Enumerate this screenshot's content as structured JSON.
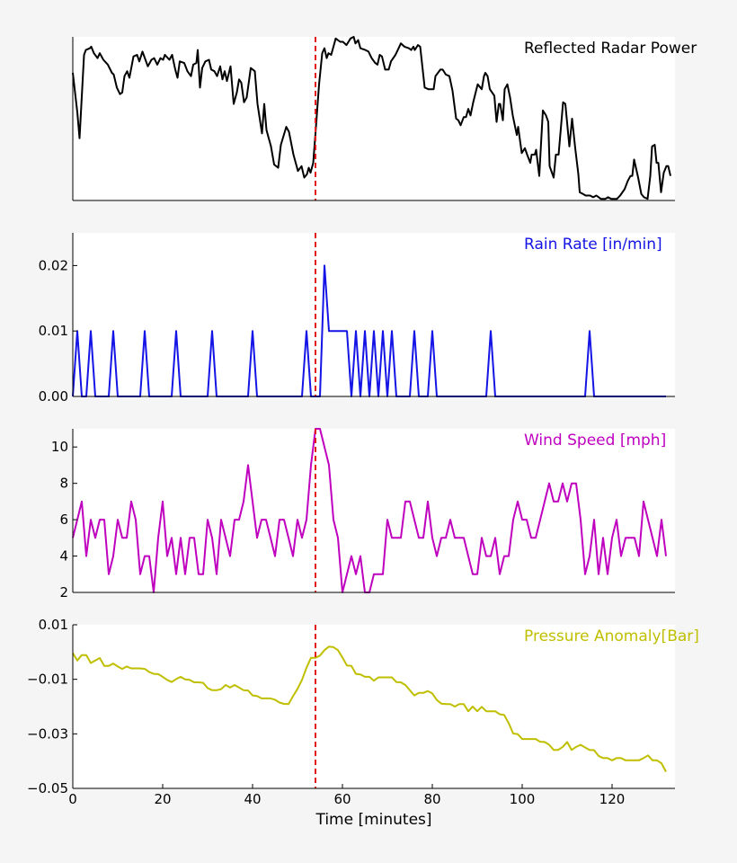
{
  "chart_data": [
    {
      "type": "line",
      "title": "Reflected Radar Power",
      "color": "#000000",
      "xlim": [
        0,
        134
      ],
      "ylim": [
        0,
        1
      ],
      "yticks": [],
      "x": [
        0,
        1,
        1.5,
        2.5,
        2.9,
        3.8,
        4.1,
        4.7,
        5.5,
        6.0,
        6.8,
        7.8,
        8.7,
        9.1,
        9.8,
        10.5,
        11.0,
        11.5,
        12.1,
        12.6,
        13.5,
        14.3,
        14.8,
        15.5,
        16.7,
        17.5,
        18.1,
        18.8,
        19.5,
        20.1,
        20.5,
        21.5,
        22.1,
        22.8,
        23.3,
        23.8,
        24.8,
        25.5,
        26.3,
        26.8,
        27.5,
        27.8,
        28.3,
        28.8,
        29.5,
        30.3,
        30.8,
        31.5,
        32.1,
        32.8,
        33.3,
        33.8,
        34.3,
        35.1,
        35.8,
        36.5,
        37.0,
        37.5,
        38.1,
        38.7,
        39.6,
        40.5,
        41.1,
        42.1,
        42.6,
        43.1,
        44.1,
        44.8,
        45.7,
        46.3,
        47.5,
        48.1,
        49.1,
        50.1,
        50.9,
        51.5,
        52.1,
        52.5,
        52.9,
        53.5,
        54.0,
        54.8,
        55.5,
        56.0,
        56.5,
        56.9,
        57.5,
        58.1,
        58.5,
        59.5,
        60.1,
        60.9,
        61.8,
        62.5,
        62.9,
        63.5,
        64.0,
        65.1,
        65.8,
        66.5,
        67.3,
        67.8,
        68.3,
        68.8,
        69.5,
        70.3,
        70.8,
        71.8,
        72.5,
        73.0,
        73.8,
        74.8,
        75.3,
        75.8,
        76.1,
        76.8,
        77.3,
        78.3,
        79.1,
        79.8,
        80.3,
        80.7,
        81.8,
        82.3,
        83.0,
        83.8,
        84.5,
        85.3,
        85.8,
        86.3,
        87.0,
        87.5,
        88.0,
        88.5,
        89.1,
        90.1,
        91.0,
        91.5,
        91.8,
        92.3,
        92.8,
        93.8,
        94.3,
        94.8,
        95.1,
        95.7,
        96.1,
        96.7,
        97.3,
        97.9,
        98.8,
        99.1,
        99.9,
        100.6,
        101.1,
        101.8,
        102.1,
        102.8,
        103.1,
        103.8,
        104.6,
        105.3,
        105.8,
        106.1,
        107.0,
        107.5,
        108.1,
        109.1,
        109.6,
        110.5,
        111.1,
        111.8,
        112.5,
        112.8,
        113.5,
        114.1,
        115.1,
        115.8,
        116.5,
        117.5,
        118.5,
        119.1,
        119.8,
        121.1,
        121.8,
        122.8,
        123.5,
        124.1,
        124.5,
        124.9,
        125.8,
        126.5,
        127.1,
        127.9,
        128.5,
        128.9,
        129.5,
        129.9,
        130.3,
        130.9,
        131.5,
        132.1,
        132.5,
        133.0
      ],
      "y": [
        0.78,
        0.54,
        0.38,
        0.89,
        0.92,
        0.93,
        0.94,
        0.9,
        0.87,
        0.9,
        0.86,
        0.83,
        0.78,
        0.77,
        0.69,
        0.65,
        0.66,
        0.76,
        0.79,
        0.75,
        0.88,
        0.89,
        0.85,
        0.91,
        0.82,
        0.86,
        0.87,
        0.83,
        0.87,
        0.86,
        0.89,
        0.86,
        0.89,
        0.8,
        0.75,
        0.85,
        0.84,
        0.79,
        0.76,
        0.83,
        0.84,
        0.92,
        0.69,
        0.81,
        0.85,
        0.86,
        0.8,
        0.79,
        0.76,
        0.82,
        0.74,
        0.79,
        0.73,
        0.82,
        0.59,
        0.66,
        0.74,
        0.72,
        0.6,
        0.63,
        0.81,
        0.79,
        0.59,
        0.41,
        0.59,
        0.43,
        0.33,
        0.22,
        0.2,
        0.34,
        0.45,
        0.42,
        0.28,
        0.18,
        0.21,
        0.14,
        0.16,
        0.2,
        0.17,
        0.23,
        0.41,
        0.71,
        0.9,
        0.93,
        0.87,
        0.9,
        0.89,
        0.95,
        0.99,
        0.97,
        0.97,
        0.95,
        0.99,
        1.0,
        0.96,
        0.98,
        0.93,
        0.92,
        0.91,
        0.87,
        0.84,
        0.83,
        0.89,
        0.88,
        0.8,
        0.8,
        0.85,
        0.89,
        0.93,
        0.96,
        0.94,
        0.93,
        0.92,
        0.94,
        0.92,
        0.95,
        0.94,
        0.69,
        0.68,
        0.68,
        0.68,
        0.76,
        0.8,
        0.8,
        0.77,
        0.76,
        0.67,
        0.5,
        0.49,
        0.46,
        0.51,
        0.51,
        0.56,
        0.52,
        0.6,
        0.71,
        0.68,
        0.76,
        0.78,
        0.76,
        0.68,
        0.64,
        0.48,
        0.59,
        0.59,
        0.49,
        0.68,
        0.71,
        0.63,
        0.52,
        0.4,
        0.45,
        0.29,
        0.32,
        0.28,
        0.23,
        0.28,
        0.28,
        0.31,
        0.15,
        0.55,
        0.52,
        0.48,
        0.21,
        0.14,
        0.28,
        0.28,
        0.6,
        0.59,
        0.33,
        0.5,
        0.32,
        0.16,
        0.05,
        0.04,
        0.03,
        0.03,
        0.02,
        0.03,
        0.01,
        0.01,
        0.02,
        0.01,
        0.01,
        0.03,
        0.07,
        0.12,
        0.15,
        0.15,
        0.25,
        0.14,
        0.04,
        0.02,
        0.01,
        0.15,
        0.33,
        0.34,
        0.23,
        0.23,
        0.05,
        0.17,
        0.21,
        0.21,
        0.15
      ]
    },
    {
      "type": "line",
      "title": "Rain Rate [in/min]",
      "color": "#1414e6",
      "xlim": [
        0,
        134
      ],
      "ylim": [
        0,
        0.025
      ],
      "yticks": [
        "0.00",
        "0.01",
        "0.02"
      ],
      "ytick_values": [
        0,
        0.01,
        0.02
      ],
      "y": [
        0,
        0.01,
        0,
        0,
        0.01,
        0,
        0,
        0,
        0,
        0.01,
        0,
        0,
        0,
        0,
        0,
        0,
        0.01,
        0,
        0,
        0,
        0,
        0,
        0,
        0.01,
        0,
        0,
        0,
        0,
        0,
        0,
        0,
        0.01,
        0,
        0,
        0,
        0,
        0,
        0,
        0,
        0,
        0.01,
        0,
        0,
        0,
        0,
        0,
        0,
        0,
        0,
        0,
        0,
        0,
        0.01,
        0,
        0,
        0,
        0.02,
        0.01,
        0.01,
        0.01,
        0.01,
        0.01,
        0,
        0.01,
        0,
        0.01,
        0,
        0.01,
        0,
        0.01,
        0,
        0.01,
        0,
        0,
        0,
        0,
        0.01,
        0,
        0,
        0,
        0.01,
        0,
        0,
        0,
        0,
        0,
        0,
        0,
        0,
        0,
        0,
        0,
        0,
        0.01,
        0,
        0,
        0,
        0,
        0,
        0,
        0,
        0,
        0,
        0,
        0,
        0,
        0,
        0,
        0,
        0,
        0,
        0,
        0,
        0,
        0,
        0.01,
        0,
        0,
        0,
        0,
        0,
        0,
        0,
        0,
        0,
        0,
        0,
        0,
        0,
        0,
        0,
        0,
        0
      ]
    },
    {
      "type": "line",
      "title": "Wind Speed [mph]",
      "color": "#bf00bf",
      "xlim": [
        0,
        134
      ],
      "ylim": [
        2,
        11
      ],
      "yticks": [
        "2",
        "4",
        "6",
        "8",
        "10"
      ],
      "ytick_values": [
        2,
        4,
        6,
        8,
        10
      ],
      "y": [
        5,
        6,
        7,
        4,
        6,
        5,
        6,
        6,
        3,
        4,
        6,
        5,
        5,
        7,
        6,
        3,
        4,
        4,
        2,
        5,
        7,
        4,
        5,
        3,
        5,
        3,
        5,
        5,
        3,
        3,
        6,
        5,
        3,
        6,
        5,
        4,
        6,
        6,
        7,
        9,
        7,
        5,
        6,
        6,
        5,
        4,
        6,
        6,
        5,
        4,
        6,
        5,
        6,
        9,
        11,
        11,
        10,
        9,
        6,
        5,
        2,
        3,
        4,
        3,
        4,
        2,
        2,
        3,
        3,
        3,
        6,
        5,
        5,
        5,
        7,
        7,
        6,
        5,
        5,
        7,
        5,
        4,
        5,
        5,
        6,
        5,
        5,
        5,
        4,
        3,
        3,
        5,
        4,
        4,
        5,
        3,
        4,
        4,
        6,
        7,
        6,
        6,
        5,
        5,
        6,
        7,
        8,
        7,
        7,
        8,
        7,
        8,
        8,
        6,
        3,
        4,
        6,
        3,
        5,
        3,
        5,
        6,
        4,
        5,
        5,
        5,
        4,
        7,
        6,
        5,
        4,
        6,
        4
      ]
    },
    {
      "type": "line",
      "title": "Pressure Anomaly[Bar]",
      "color": "#bfbf00",
      "xlim": [
        0,
        134
      ],
      "ylim": [
        -0.05,
        0.01
      ],
      "yticks": [
        "0.01",
        "−0.01",
        "−0.03",
        "−0.05"
      ],
      "ytick_values": [
        0.01,
        -0.01,
        -0.03,
        -0.05
      ],
      "xticks": [
        "0",
        "20",
        "40",
        "60",
        "80",
        "100",
        "120"
      ],
      "xtick_values": [
        0,
        20,
        40,
        60,
        80,
        100,
        120
      ],
      "xlabel": "Time [minutes]",
      "y": [
        -0.0004,
        -0.0031,
        -0.0011,
        -0.0011,
        -0.004,
        -0.0031,
        -0.0022,
        -0.0051,
        -0.0051,
        -0.0042,
        -0.0053,
        -0.0062,
        -0.0053,
        -0.006,
        -0.006,
        -0.006,
        -0.0062,
        -0.0073,
        -0.008,
        -0.0081,
        -0.0091,
        -0.0102,
        -0.011,
        -0.0099,
        -0.0091,
        -0.01,
        -0.0102,
        -0.0111,
        -0.0111,
        -0.0113,
        -0.0132,
        -0.014,
        -0.014,
        -0.0136,
        -0.0121,
        -0.013,
        -0.0121,
        -0.013,
        -0.014,
        -0.0141,
        -0.0159,
        -0.0161,
        -0.017,
        -0.017,
        -0.017,
        -0.0175,
        -0.0185,
        -0.019,
        -0.0191,
        -0.0162,
        -0.0135,
        -0.0102,
        -0.0058,
        -0.0021,
        -0.0021,
        -0.0013,
        0.0007,
        0.002,
        0.0018,
        0.0007,
        -0.002,
        -0.0049,
        -0.0051,
        -0.008,
        -0.0082,
        -0.0091,
        -0.0091,
        -0.0105,
        -0.0093,
        -0.0093,
        -0.0093,
        -0.0093,
        -0.011,
        -0.0111,
        -0.0121,
        -0.014,
        -0.0159,
        -0.015,
        -0.015,
        -0.0143,
        -0.0152,
        -0.0176,
        -0.0189,
        -0.0191,
        -0.0191,
        -0.02,
        -0.0191,
        -0.0191,
        -0.0217,
        -0.02,
        -0.0217,
        -0.0201,
        -0.0217,
        -0.0217,
        -0.0217,
        -0.0228,
        -0.0231,
        -0.0261,
        -0.0299,
        -0.0301,
        -0.0319,
        -0.0319,
        -0.0319,
        -0.0319,
        -0.0329,
        -0.033,
        -0.034,
        -0.0359,
        -0.0359,
        -0.0348,
        -0.033,
        -0.0359,
        -0.0348,
        -0.034,
        -0.035,
        -0.0359,
        -0.036,
        -0.0381,
        -0.0389,
        -0.0389,
        -0.0397,
        -0.0389,
        -0.0389,
        -0.0397,
        -0.0397,
        -0.0397,
        -0.0397,
        -0.0389,
        -0.0379,
        -0.0397,
        -0.0397,
        -0.0408,
        -0.0439
      ]
    }
  ],
  "event_marker": {
    "x": 54,
    "color": "#e31a1c",
    "style": "dashed"
  },
  "grid": false
}
